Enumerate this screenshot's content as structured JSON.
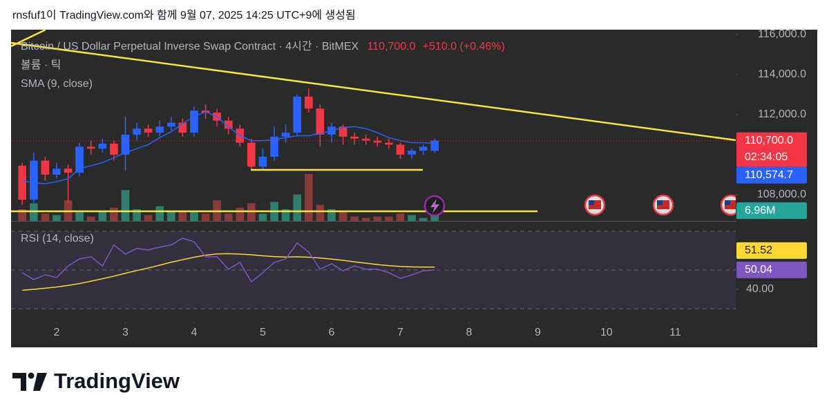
{
  "header": "rnsfuf1이 TradingView.com와 함께 9월 07, 2025 14:25 UTC+9에 생성됨",
  "footer": "TradingView",
  "chart_data": {
    "type": "candlestick",
    "title": "Bitcoin / US Dollar Perpetual Inverse Swap Contract · 4시간 · BitMEX",
    "last_close_label": "110,700.0",
    "change_label": "+510.0 (+0.46%)",
    "countdown": "02:34:05",
    "volume_title": "볼륨 · 틱",
    "x": [
      1.5,
      1.667,
      1.833,
      2,
      2.167,
      2.333,
      2.5,
      2.667,
      2.833,
      3,
      3.167,
      3.333,
      3.5,
      3.667,
      3.833,
      4,
      4.167,
      4.333,
      4.5,
      4.667,
      4.833,
      5,
      5.167,
      5.333,
      5.5,
      5.667,
      5.833,
      6,
      6.167,
      6.333,
      6.5,
      6.667,
      6.833,
      7,
      7.167,
      7.333,
      7.5
    ],
    "xlim": [
      1.337,
      11.88
    ],
    "xticks": [
      2,
      3,
      4,
      5,
      6,
      7,
      8,
      9,
      10,
      11
    ],
    "open": [
      109450,
      107750,
      109700,
      109000,
      109300,
      109100,
      110400,
      110300,
      110550,
      110000,
      111000,
      111300,
      111100,
      111400,
      111600,
      111100,
      112200,
      112100,
      111700,
      111300,
      110600,
      109400,
      109900,
      110900,
      111100,
      112900,
      112300,
      111000,
      111400,
      110900,
      110800,
      110700,
      110600,
      110500,
      110000,
      110200,
      110190
    ],
    "high": [
      109600,
      110100,
      109900,
      109600,
      109500,
      110600,
      110700,
      110800,
      110700,
      111900,
      111600,
      111500,
      111700,
      111900,
      111800,
      112400,
      112500,
      112300,
      111900,
      111500,
      110800,
      110300,
      111400,
      111500,
      113000,
      113300,
      112500,
      111600,
      111500,
      111100,
      111000,
      110900,
      110800,
      110600,
      110300,
      110500,
      110800
    ],
    "low": [
      107500,
      107600,
      108700,
      108800,
      107600,
      108900,
      110000,
      110100,
      109700,
      109200,
      110700,
      110900,
      110900,
      111200,
      110900,
      110900,
      111800,
      111400,
      111000,
      110400,
      109200,
      109200,
      109700,
      110600,
      110900,
      112100,
      110400,
      110600,
      110500,
      110500,
      110500,
      110400,
      110300,
      109800,
      109800,
      110000,
      110100
    ],
    "close": [
      107750,
      109700,
      109000,
      109300,
      109100,
      110400,
      110300,
      110550,
      110000,
      111000,
      111300,
      111100,
      111400,
      111600,
      111100,
      112200,
      112100,
      111700,
      111300,
      110600,
      109400,
      109900,
      110900,
      111100,
      112900,
      112300,
      111000,
      111400,
      110900,
      110800,
      110700,
      110600,
      110500,
      110000,
      110200,
      110400,
      110700
    ],
    "up_color": "#2962ff",
    "down_color": "#f23645",
    "ylim": [
      106690,
      116240
    ],
    "yticks": [
      {
        "value": 116000,
        "label": "116,000.0"
      },
      {
        "value": 114000,
        "label": "114,000.0"
      },
      {
        "value": 112000,
        "label": "112,000.0"
      },
      {
        "value": 108000,
        "label": "108,000.0"
      }
    ],
    "sma": {
      "name": "SMA (9, close)",
      "color": "#2962ff",
      "last_label": "110,574.7",
      "values": [
        108700,
        108600,
        108550,
        108650,
        108800,
        109300,
        109450,
        109600,
        109850,
        110100,
        110300,
        110500,
        110850,
        111150,
        111550,
        111900,
        112150,
        111900,
        111400,
        110950,
        110700,
        110700,
        110750,
        110850,
        110950,
        110950,
        111050,
        111200,
        111350,
        111400,
        111300,
        111100,
        110850,
        110700,
        110600,
        110600,
        110574.7
      ]
    },
    "volume": {
      "values": [
        8,
        12,
        5,
        4,
        14,
        6,
        3,
        7,
        9,
        21,
        8,
        4,
        10,
        6,
        7,
        6,
        5,
        14,
        5,
        9,
        12,
        5,
        13,
        8,
        18,
        32,
        11,
        8,
        6,
        3,
        2,
        3,
        3,
        5,
        4,
        2,
        6.96
      ],
      "vlim": [
        0,
        130
      ],
      "last_label": "6.96M",
      "up_color": "#2e7d6e",
      "down_color": "#8b3a3a"
    },
    "rsi": {
      "title": "RSI (14, close)",
      "color": "#7e57c2",
      "ma_color": "#fdd835",
      "values": [
        48.6,
        45.0,
        47.5,
        46.1,
        52.1,
        55.7,
        56.8,
        52.1,
        62.9,
        58.2,
        61.1,
        60.4,
        61.8,
        62.9,
        66.4,
        64.6,
        56.8,
        56.8,
        50.4,
        53.9,
        43.9,
        48.6,
        53.9,
        55.7,
        63.9,
        59.3,
        50.4,
        53.2,
        49.6,
        52.1,
        50.4,
        50.4,
        48.6,
        45.7,
        47.5,
        49.6,
        50.04
      ],
      "ma_values": [
        39.5,
        40.0,
        40.6,
        41.2,
        42.0,
        43.0,
        44.2,
        45.5,
        46.8,
        48.3,
        49.7,
        51.0,
        52.5,
        54.0,
        55.3,
        56.6,
        57.6,
        58.3,
        58.4,
        58.2,
        57.9,
        57.3,
        56.9,
        56.7,
        56.8,
        56.6,
        56.2,
        55.6,
        55.0,
        54.2,
        53.5,
        52.8,
        52.2,
        51.8,
        51.6,
        51.5,
        51.52
      ],
      "value_label": "50.04",
      "ma_label": "51.52",
      "ylim": [
        23.6,
        74.6
      ],
      "yticks": [
        {
          "value": 40,
          "label": "40.00"
        }
      ],
      "bands": [
        70,
        50,
        30
      ]
    }
  }
}
